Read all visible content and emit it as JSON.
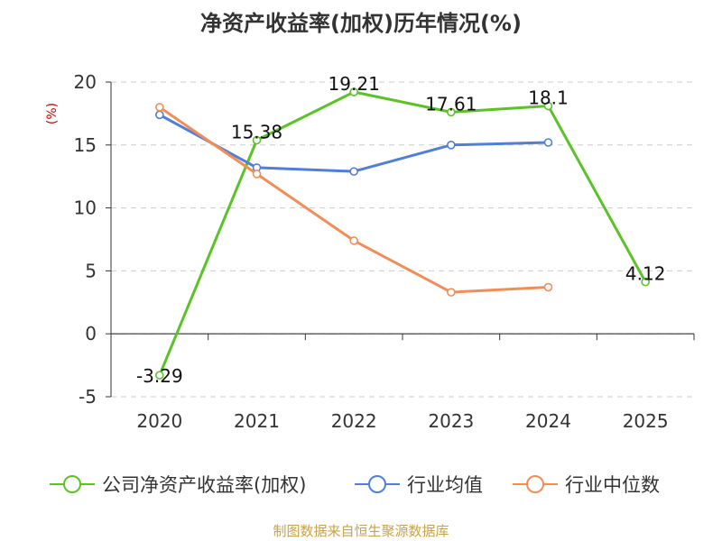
{
  "chart_data": {
    "type": "line",
    "title": "净资产收益率(加权)历年情况(%)",
    "y_unit": "(%)",
    "categories": [
      "2020",
      "2021",
      "2022",
      "2023",
      "2024",
      "2025"
    ],
    "ylim": [
      -5,
      20
    ],
    "yticks": [
      20,
      15,
      10,
      5,
      0,
      -5
    ],
    "grid": true,
    "legend_position": "bottom",
    "series": [
      {
        "name": "公司净资产收益率(加权)",
        "color": "#5bc227",
        "values": [
          -3.29,
          15.38,
          19.21,
          17.61,
          18.1,
          4.12
        ],
        "labels": [
          "-3.29",
          "15.38",
          "19.21",
          "17.61",
          "18.1",
          "4.12"
        ]
      },
      {
        "name": "行业均值",
        "color": "#4f7fd8",
        "values": [
          17.4,
          13.2,
          12.9,
          15.0,
          15.2,
          null
        ]
      },
      {
        "name": "行业中位数",
        "color": "#f28d58",
        "values": [
          18.0,
          12.7,
          7.4,
          3.3,
          3.7,
          null
        ]
      }
    ]
  },
  "source": "制图数据来自恒生聚源数据库"
}
